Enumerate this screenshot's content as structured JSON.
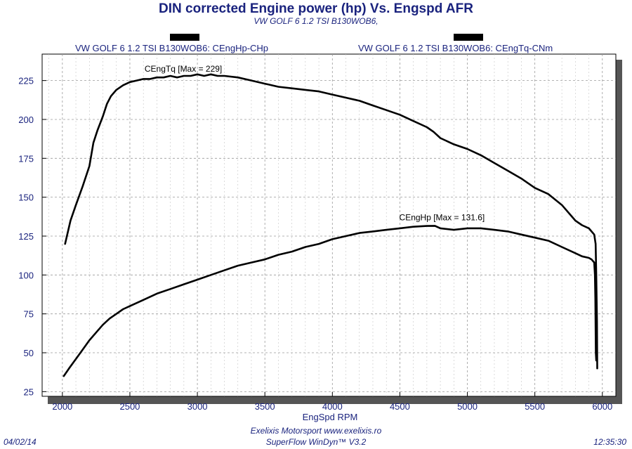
{
  "chart_data": {
    "type": "line",
    "title": "DIN corrected Engine power (hp) Vs. Engspd AFR",
    "subtitle": "VW GOLF 6 1.2 TSI B130WOB6,",
    "xlabel": "EngSpd RPM",
    "ylabel": "",
    "xlim": [
      1850,
      6100
    ],
    "ylim": [
      22,
      242
    ],
    "xticks": [
      2000,
      2500,
      3000,
      3500,
      4000,
      4500,
      5000,
      5500,
      6000
    ],
    "yticks": [
      25,
      50,
      75,
      100,
      125,
      150,
      175,
      200,
      225
    ],
    "grid": true,
    "legend": [
      {
        "label": "VW GOLF 6 1.2 TSI B130WOB6: CEngHp-CHp"
      },
      {
        "label": "VW GOLF 6 1.2 TSI B130WOB6: CEngTq-CNm"
      }
    ],
    "series": [
      {
        "name": "CEngTq",
        "annotation": "CEngTq [Max = 229]",
        "x": [
          2020,
          2060,
          2100,
          2150,
          2200,
          2230,
          2260,
          2300,
          2330,
          2360,
          2400,
          2450,
          2500,
          2550,
          2600,
          2650,
          2700,
          2750,
          2800,
          2850,
          2900,
          2950,
          3000,
          3050,
          3100,
          3150,
          3200,
          3300,
          3400,
          3500,
          3600,
          3700,
          3800,
          3900,
          4000,
          4100,
          4200,
          4300,
          4400,
          4500,
          4600,
          4700,
          4750,
          4800,
          4900,
          5000,
          5100,
          5200,
          5300,
          5400,
          5500,
          5600,
          5700,
          5800,
          5850,
          5900,
          5920,
          5940,
          5950,
          5955,
          5960,
          5962
        ],
        "values": [
          120,
          135,
          145,
          157,
          170,
          185,
          193,
          202,
          210,
          215,
          219,
          222,
          224,
          225,
          226,
          226,
          227,
          227,
          228,
          227,
          228,
          228,
          229,
          228,
          229,
          228,
          228,
          227,
          225,
          223,
          221,
          220,
          219,
          218,
          216,
          214,
          212,
          209,
          206,
          203,
          199,
          195,
          192,
          188,
          184,
          181,
          177,
          172,
          167,
          162,
          156,
          152,
          145,
          135,
          132,
          130,
          128,
          126,
          120,
          100,
          70,
          40
        ]
      },
      {
        "name": "CEngHp",
        "annotation": "CEngHp [Max = 131.6]",
        "x": [
          2010,
          2050,
          2100,
          2150,
          2200,
          2250,
          2300,
          2350,
          2400,
          2450,
          2500,
          2600,
          2700,
          2800,
          2900,
          3000,
          3100,
          3200,
          3300,
          3400,
          3500,
          3600,
          3700,
          3800,
          3900,
          4000,
          4100,
          4200,
          4300,
          4400,
          4500,
          4600,
          4700,
          4760,
          4800,
          4900,
          5000,
          5100,
          5200,
          5300,
          5400,
          5500,
          5600,
          5700,
          5800,
          5850,
          5900,
          5920,
          5940,
          5945,
          5948,
          5950,
          5952,
          5955
        ],
        "values": [
          35,
          40,
          46,
          52,
          58,
          63,
          68,
          72,
          75,
          78,
          80,
          84,
          88,
          91,
          94,
          97,
          100,
          103,
          106,
          108,
          110,
          113,
          115,
          118,
          120,
          123,
          125,
          127,
          128,
          129,
          130,
          131,
          131.5,
          131.6,
          130,
          129,
          130,
          130,
          129,
          128,
          126,
          124,
          122,
          118,
          114,
          112,
          111,
          110,
          108,
          100,
          85,
          65,
          50,
          45
        ]
      }
    ]
  },
  "legend_labels": {
    "hp": "VW GOLF 6 1.2 TSI B130WOB6: CEngHp-CHp",
    "tq": "VW GOLF 6 1.2 TSI B130WOB6: CEngTq-CNm"
  },
  "footer": {
    "date": "04/02/14",
    "company": "Exelixis Motorsport www.exelixis.ro",
    "software": "SuperFlow WinDyn™ V3.2",
    "time": "12:35:30"
  }
}
